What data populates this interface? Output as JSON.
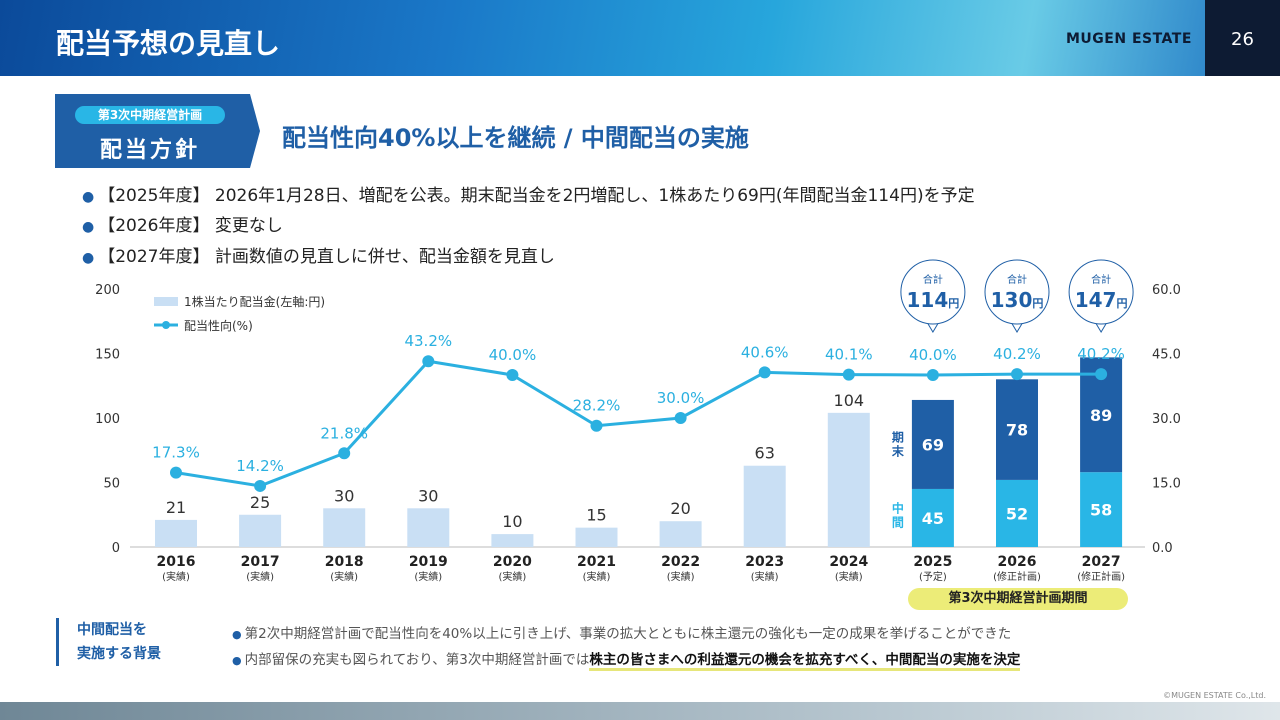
{
  "header": {
    "title": "配当予想の見直し",
    "brand": "MUGEN ESTATE",
    "page": "26"
  },
  "tag": {
    "pill": "第3次中期経営計画",
    "label": "配当方針"
  },
  "headline": "配当性向40%以上を継続 / 中間配当の実施",
  "bullets": [
    "【2025年度】 2026年1月28日、増配を公表。期末配当金を2円増配し、1株あたり69円(年間配当金114円)を予定",
    "【2026年度】 変更なし",
    "【2027年度】 計画数値の見直しに併せ、配当金額を見直し"
  ],
  "chart_data": {
    "type": "bar",
    "categories": [
      "2016",
      "2017",
      "2018",
      "2019",
      "2020",
      "2021",
      "2022",
      "2023",
      "2024",
      "2025",
      "2026",
      "2027"
    ],
    "category_notes": [
      "(実績)",
      "(実績)",
      "(実績)",
      "(実績)",
      "(実績)",
      "(実績)",
      "(実績)",
      "(実績)",
      "(実績)",
      "(予定)",
      "(修正計画)",
      "(修正計画)"
    ],
    "series": [
      {
        "name": "1株当たり配当金(左軸:円)",
        "type": "bar",
        "values": [
          21,
          25,
          30,
          30,
          10,
          15,
          20,
          63,
          104,
          null,
          null,
          null
        ],
        "color": "#c9dff4"
      },
      {
        "name": "中間",
        "type": "bar",
        "stack": "split",
        "values": [
          null,
          null,
          null,
          null,
          null,
          null,
          null,
          null,
          null,
          45,
          52,
          58
        ],
        "color": "#29b6e6"
      },
      {
        "name": "期末",
        "type": "bar",
        "stack": "split",
        "values": [
          null,
          null,
          null,
          null,
          null,
          null,
          null,
          null,
          null,
          69,
          78,
          89
        ],
        "color": "#1f5fa6"
      },
      {
        "name": "配当性向(%)",
        "type": "line",
        "axis": "right",
        "values": [
          17.3,
          14.2,
          21.8,
          43.2,
          40.0,
          28.2,
          30.0,
          40.6,
          40.1,
          40.0,
          40.2,
          40.2
        ],
        "color": "#2bb0e0"
      }
    ],
    "totals": [
      {
        "label": "合計",
        "value": "114",
        "unit": "円"
      },
      {
        "label": "合計",
        "value": "130",
        "unit": "円"
      },
      {
        "label": "合計",
        "value": "147",
        "unit": "円"
      }
    ],
    "yleft": {
      "ylim": [
        0,
        200
      ],
      "ticks": [
        "0",
        "50",
        "100",
        "150",
        "200"
      ]
    },
    "yright": {
      "ylim": [
        0,
        60
      ],
      "ticks": [
        "0.0",
        "15.0",
        "30.0",
        "45.0",
        "60.0"
      ]
    },
    "legend": "top-left",
    "grid": false
  },
  "period_label": "第3次中期経営計画期間",
  "background": {
    "title_line1": "中間配当を",
    "title_line2": "実施する背景",
    "note1": "第2次中期経営計画で配当性向を40%以上に引き上げ、事業の拡大とともに株主還元の強化も一定の成果を挙げることができた",
    "note2_plain": "内部留保の充実も図られており、第3次中期経営計画では",
    "note2_highlight": "株主の皆さまへの利益還元の機会を拡充すべく、中間配当の実施を決定"
  },
  "copyright": "©MUGEN ESTATE Co.,Ltd."
}
